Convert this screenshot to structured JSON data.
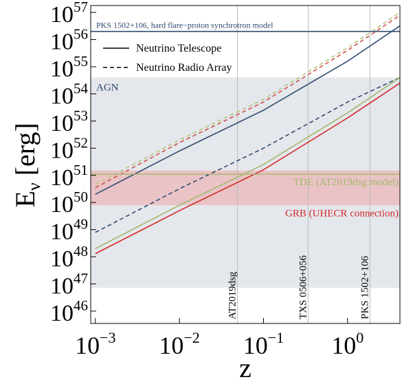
{
  "chart_data": {
    "type": "line",
    "xlog": true,
    "ylog": true,
    "xlabel": "z",
    "ylabel": [
      "E",
      "ν",
      " [erg]"
    ],
    "xlim": [
      0.00088,
      4.2
    ],
    "ylim": [
      3.5e+45,
      1.8e+57
    ],
    "xticks": [
      {
        "value": 0.001,
        "label": [
          "10",
          "−3"
        ]
      },
      {
        "value": 0.01,
        "label": [
          "10",
          "−2"
        ]
      },
      {
        "value": 0.1,
        "label": [
          "10",
          "−1"
        ]
      },
      {
        "value": 1,
        "label": [
          "10",
          "0"
        ]
      }
    ],
    "yticks": [
      {
        "value": 1e+46,
        "label": [
          "10",
          "46"
        ]
      },
      {
        "value": 1e+47,
        "label": [
          "10",
          "47"
        ]
      },
      {
        "value": 1e+48,
        "label": [
          "10",
          "48"
        ]
      },
      {
        "value": 1e+49,
        "label": [
          "10",
          "49"
        ]
      },
      {
        "value": 1e+50,
        "label": [
          "10",
          "50"
        ]
      },
      {
        "value": 1e+51,
        "label": [
          "10",
          "51"
        ]
      },
      {
        "value": 1e+52,
        "label": [
          "10",
          "52"
        ]
      },
      {
        "value": 1e+53,
        "label": [
          "10",
          "53"
        ]
      },
      {
        "value": 1e+54,
        "label": [
          "10",
          "54"
        ]
      },
      {
        "value": 1e+55,
        "label": [
          "10",
          "55"
        ]
      },
      {
        "value": 1e+56,
        "label": [
          "10",
          "56"
        ]
      },
      {
        "value": 1e+57,
        "label": [
          "10",
          "57"
        ]
      }
    ],
    "bands": [
      {
        "from": 7.2e+46,
        "to": 4e+54,
        "color": "#dfe3e8",
        "label": "AGN",
        "label_color": "#2f4b6e"
      },
      {
        "from": 7.9e+49,
        "to": 1.5e+51,
        "color": "#ebbcc0",
        "label": "GRB (UHECR connection)",
        "label_color": "#d42a2a"
      }
    ],
    "hlines": [
      {
        "value": 2e+56,
        "color": "#2f4b6e",
        "label": "PKS 1502+106, hard flare−proton synchrotron model"
      },
      {
        "value": 1.1e+51,
        "color": "#a3b86c",
        "label": "TDE (AT2019dsg model)"
      }
    ],
    "vlines": [
      {
        "value": 0.049,
        "label": "AT2019dsg"
      },
      {
        "value": 0.34,
        "label": "TXS 0506+056"
      },
      {
        "value": 1.85,
        "label": "PKS 1502+106"
      }
    ],
    "legend": [
      {
        "label": "Neutrino Telescope",
        "dash": "solid"
      },
      {
        "label": "Neutrino Radio Array",
        "dash": "dashed"
      }
    ],
    "x": [
      0.001,
      0.01,
      0.1,
      1,
      4.2
    ],
    "series": [
      {
        "color": "#b5c57e",
        "dash": "dashed",
        "values": [
          4.6e+50,
          2e+52,
          6.3e+53,
          5e+55,
          1e+57
        ]
      },
      {
        "color": "#d05050",
        "dash": "dashed",
        "values": [
          3.5e+50,
          1.6e+52,
          5e+53,
          4e+55,
          7.9e+56
        ]
      },
      {
        "color": "#2f4b6e",
        "dash": "solid",
        "values": [
          2e+50,
          7.9e+51,
          2.5e+53,
          1.6e+55,
          3.2e+56
        ]
      },
      {
        "color": "#2f4b6e",
        "dash": "dashed",
        "values": [
          7.9e+48,
          3.2e+50,
          1e+52,
          5e+53,
          4e+54
        ]
      },
      {
        "color": "#a3b86c",
        "dash": "solid",
        "values": [
          2e+48,
          7.9e+49,
          2.5e+51,
          2e+53,
          4e+54
        ]
      },
      {
        "color": "#d42a2a",
        "dash": "solid",
        "values": [
          1.3e+48,
          5e+49,
          1.6e+51,
          1.3e+53,
          2.5e+54
        ]
      }
    ]
  }
}
